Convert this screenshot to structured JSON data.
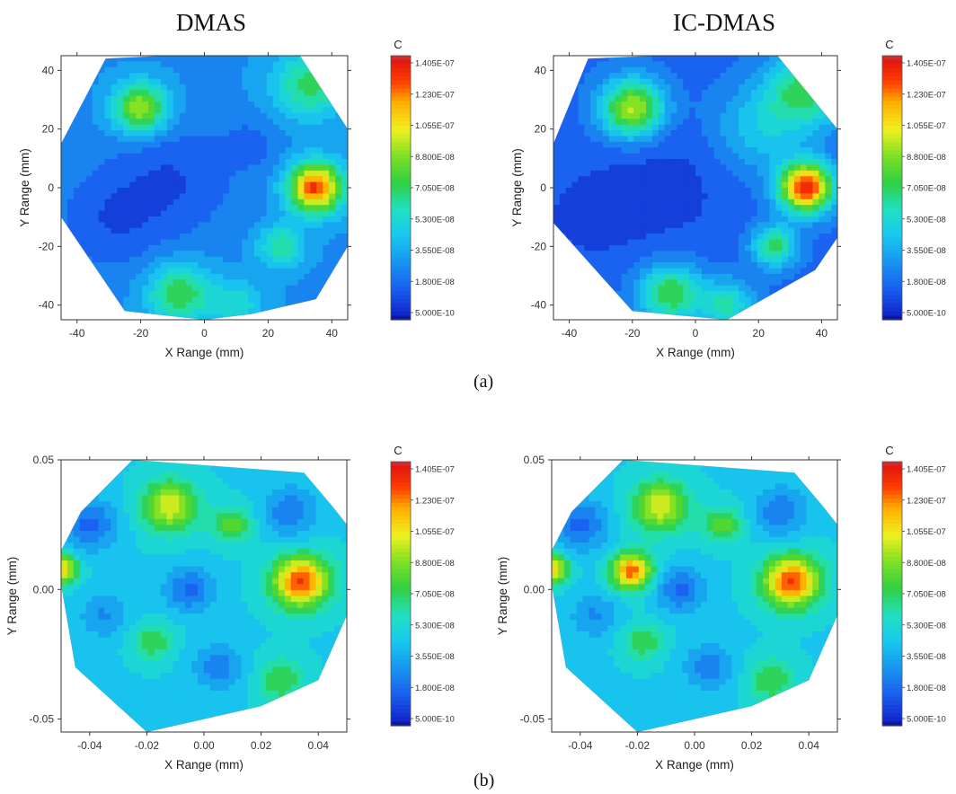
{
  "titles": {
    "left": "DMAS",
    "right": "IC-DMAS"
  },
  "panel_labels": {
    "a": "(a)",
    "b": "(b)"
  },
  "colorbar": {
    "title": "C",
    "ticks": [
      "1.405E-07",
      "1.230E-07",
      "1.055E-07",
      "8.800E-08",
      "7.050E-08",
      "5.300E-08",
      "3.550E-08",
      "1.800E-08",
      "5.000E-10"
    ],
    "colors": [
      "#000000",
      "#1020c8",
      "#1a60f0",
      "#18b4ee",
      "#20e0c0",
      "#30d040",
      "#7ee024",
      "#f0f020",
      "#ffb000",
      "#ff4000",
      "#e01010",
      "#909090"
    ]
  },
  "chart_data": [
    {
      "type": "heatmap",
      "panel": "(a)",
      "title": "DMAS",
      "xlabel": "X Range (mm)",
      "ylabel": "Y Range (mm)",
      "xticks": [
        "-40",
        "-20",
        "0",
        "20",
        "40"
      ],
      "yticks": [
        "40",
        "20",
        "0",
        "-20",
        "-40"
      ],
      "xlim": [
        -45,
        45
      ],
      "ylim": [
        -45,
        45
      ],
      "colorbar_label": "C",
      "value_range": [
        5e-10,
        1.405e-07
      ],
      "background": 3e-08,
      "hotspots": [
        {
          "x": -20,
          "y": 27,
          "value": 9.5e-08,
          "spread": 6
        },
        {
          "x": 35,
          "y": 0,
          "value": 1.3e-07,
          "spread": 6
        },
        {
          "x": 33,
          "y": 35,
          "value": 7e-08,
          "spread": 8
        },
        {
          "x": -8,
          "y": -36,
          "value": 7.5e-08,
          "spread": 7
        },
        {
          "x": 24,
          "y": -20,
          "value": 6.5e-08,
          "spread": 5
        },
        {
          "x": 10,
          "y": -40,
          "value": 5.5e-08,
          "spread": 6
        },
        {
          "x": -10,
          "y": 3,
          "value": 1.4e-08,
          "spread": 14
        },
        {
          "x": -30,
          "y": -12,
          "value": 1.6e-08,
          "spread": 12
        },
        {
          "x": 15,
          "y": 15,
          "value": 2e-08,
          "spread": 6
        }
      ]
    },
    {
      "type": "heatmap",
      "panel": "(a)",
      "title": "IC-DMAS",
      "xlabel": "X Range (mm)",
      "ylabel": "Y Range (mm)",
      "xticks": [
        "-40",
        "-20",
        "0",
        "20",
        "40"
      ],
      "yticks": [
        "40",
        "20",
        "0",
        "-20",
        "-40"
      ],
      "xlim": [
        -45,
        45
      ],
      "ylim": [
        -45,
        45
      ],
      "colorbar_label": "C",
      "value_range": [
        5e-10,
        1.405e-07
      ],
      "background": 2e-08,
      "hotspots": [
        {
          "x": -20,
          "y": 27,
          "value": 9.5e-08,
          "spread": 7
        },
        {
          "x": 35,
          "y": 0,
          "value": 1.35e-07,
          "spread": 6
        },
        {
          "x": 35,
          "y": 33,
          "value": 7e-08,
          "spread": 9
        },
        {
          "x": -8,
          "y": -36,
          "value": 7.5e-08,
          "spread": 7
        },
        {
          "x": 25,
          "y": -20,
          "value": 7e-08,
          "spread": 5
        },
        {
          "x": 10,
          "y": -40,
          "value": 6e-08,
          "spread": 6
        },
        {
          "x": -10,
          "y": 0,
          "value": 1e-08,
          "spread": 15
        },
        {
          "x": -35,
          "y": -10,
          "value": 1.2e-08,
          "spread": 12
        },
        {
          "x": 20,
          "y": 20,
          "value": 4.5e-08,
          "spread": 10
        }
      ]
    },
    {
      "type": "heatmap",
      "panel": "(b)",
      "title": "DMAS",
      "xlabel": "X Range (mm)",
      "ylabel": "Y Range (mm)",
      "xticks": [
        "-0.04",
        "-0.02",
        "0.00",
        "0.02",
        "0.04"
      ],
      "yticks": [
        "0.05",
        "0.00",
        "-0.05"
      ],
      "xlim": [
        -0.05,
        0.05
      ],
      "ylim": [
        -0.055,
        0.05
      ],
      "colorbar_label": "C",
      "value_range": [
        5e-10,
        1.405e-07
      ],
      "background": 4.8e-08,
      "hotspots": [
        {
          "x": -0.012,
          "y": 0.032,
          "value": 1e-07,
          "spread": 0.007
        },
        {
          "x": 0.034,
          "y": 0.003,
          "value": 1.3e-07,
          "spread": 0.007
        },
        {
          "x": -0.05,
          "y": 0.008,
          "value": 1.1e-07,
          "spread": 0.004
        },
        {
          "x": 0.01,
          "y": 0.025,
          "value": 8e-08,
          "spread": 0.005
        },
        {
          "x": -0.018,
          "y": -0.02,
          "value": 7.5e-08,
          "spread": 0.005
        },
        {
          "x": 0.027,
          "y": -0.035,
          "value": 7.5e-08,
          "spread": 0.006
        },
        {
          "x": -0.04,
          "y": 0.025,
          "value": 2e-08,
          "spread": 0.007
        },
        {
          "x": -0.005,
          "y": 0.0,
          "value": 2e-08,
          "spread": 0.006
        },
        {
          "x": 0.03,
          "y": 0.03,
          "value": 2.5e-08,
          "spread": 0.007
        },
        {
          "x": 0.005,
          "y": -0.03,
          "value": 2.5e-08,
          "spread": 0.006
        },
        {
          "x": -0.035,
          "y": -0.01,
          "value": 3e-08,
          "spread": 0.006
        }
      ]
    },
    {
      "type": "heatmap",
      "panel": "(b)",
      "title": "IC-DMAS",
      "xlabel": "X Range (mm)",
      "ylabel": "Y Range (mm)",
      "xticks": [
        "-0.04",
        "-0.02",
        "0.00",
        "0.02",
        "0.04"
      ],
      "yticks": [
        "0.05",
        "0.00",
        "-0.05"
      ],
      "xlim": [
        -0.05,
        0.05
      ],
      "ylim": [
        -0.055,
        0.05
      ],
      "colorbar_label": "C",
      "value_range": [
        5e-10,
        1.405e-07
      ],
      "background": 4.8e-08,
      "hotspots": [
        {
          "x": -0.012,
          "y": 0.032,
          "value": 1e-07,
          "spread": 0.007
        },
        {
          "x": 0.034,
          "y": 0.003,
          "value": 1.3e-07,
          "spread": 0.007
        },
        {
          "x": -0.022,
          "y": 0.007,
          "value": 1.25e-07,
          "spread": 0.005
        },
        {
          "x": -0.05,
          "y": 0.008,
          "value": 1.1e-07,
          "spread": 0.004
        },
        {
          "x": 0.01,
          "y": 0.025,
          "value": 8e-08,
          "spread": 0.005
        },
        {
          "x": -0.018,
          "y": -0.02,
          "value": 7.5e-08,
          "spread": 0.005
        },
        {
          "x": 0.027,
          "y": -0.035,
          "value": 7.5e-08,
          "spread": 0.006
        },
        {
          "x": -0.04,
          "y": 0.025,
          "value": 2e-08,
          "spread": 0.007
        },
        {
          "x": -0.005,
          "y": 0.0,
          "value": 2e-08,
          "spread": 0.006
        },
        {
          "x": 0.03,
          "y": 0.03,
          "value": 2.5e-08,
          "spread": 0.007
        },
        {
          "x": 0.005,
          "y": -0.03,
          "value": 2.5e-08,
          "spread": 0.006
        },
        {
          "x": -0.035,
          "y": -0.01,
          "value": 3e-08,
          "spread": 0.006
        }
      ]
    }
  ]
}
